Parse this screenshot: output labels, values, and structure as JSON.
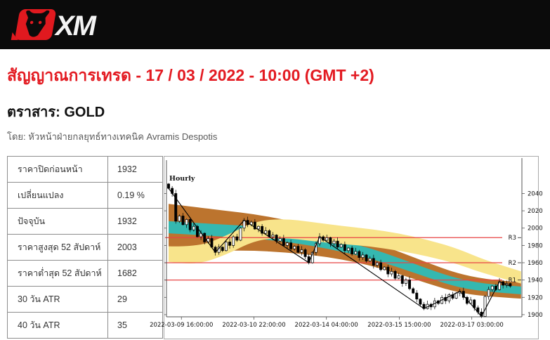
{
  "header": {
    "logo_text": "XM"
  },
  "article": {
    "title": "สัญญาณการเทรด - 17 / 03 / 2022 - 10:00 (GMT +2)",
    "instrument_label": "ตราสาร: GOLD",
    "byline": "โดย: หัวหน้าฝ่ายกลยุทธ์ทางเทคนิค Avramis Despotis"
  },
  "stats_table": {
    "rows": [
      {
        "label": "ราคาปิดก่อนหน้า",
        "value": "1932"
      },
      {
        "label": "เปลี่ยนแปลง",
        "value": "0.19 %"
      },
      {
        "label": "ปัจจุบัน",
        "value": "1932"
      },
      {
        "label": "ราคาสูงสุด 52 สัปดาห์",
        "value": "2003"
      },
      {
        "label": "ราคาต่ำสุด 52 สัปดาห์",
        "value": "1682"
      },
      {
        "label": "30 วัน ATR",
        "value": "29"
      },
      {
        "label": "40 วัน ATR",
        "value": "35"
      }
    ]
  },
  "chart_data": {
    "type": "candlestick",
    "timeframe_label": "Hourly",
    "y_range": [
      1897.5,
      2078.5
    ],
    "y_ticks": [
      1900,
      1920,
      1940,
      1960,
      1980,
      2000,
      2020,
      2040
    ],
    "x_ticks": [
      {
        "label": "2022-03-09 16:00:00",
        "pos": 0.042
      },
      {
        "label": "2022-03-10 22:00:00",
        "pos": 0.246
      },
      {
        "label": "2022-03-14 04:00:00",
        "pos": 0.45
      },
      {
        "label": "2022-03-15 15:00:00",
        "pos": 0.655
      },
      {
        "label": "2022-03-17 03:00:00",
        "pos": 0.859
      }
    ],
    "resistance_lines": [
      {
        "label": "R1",
        "value": 1940
      },
      {
        "label": "R2",
        "value": 1960
      },
      {
        "label": "R3",
        "value": 1989
      }
    ],
    "first_open": 2051,
    "closes": [
      2046,
      2040,
      2008,
      2014,
      2004,
      2010,
      1998,
      2002,
      1990,
      1994,
      1984,
      1988,
      1978,
      1972,
      1978,
      1974,
      1984,
      1980,
      1990,
      1986,
      2000,
      2009,
      2004,
      2007,
      1999,
      2002,
      1994,
      1997,
      1990,
      1992,
      1985,
      1988,
      1980,
      1983,
      1976,
      1979,
      1972,
      1975,
      1967,
      1960,
      1972,
      1982,
      1990,
      1986,
      1989,
      1982,
      1985,
      1978,
      1981,
      1974,
      1977,
      1970,
      1973,
      1966,
      1969,
      1962,
      1965,
      1957,
      1960,
      1952,
      1955,
      1947,
      1950,
      1942,
      1945,
      1936,
      1940,
      1930,
      1925,
      1918,
      1912,
      1907,
      1912,
      1909,
      1916,
      1913,
      1920,
      1916,
      1923,
      1919,
      1925,
      1927,
      1920,
      1913,
      1917,
      1908,
      1903,
      1898,
      1921,
      1929,
      1933,
      1929,
      1938,
      1934,
      1936,
      1933
    ],
    "zigzag": [
      [
        0,
        2046
      ],
      [
        13,
        1972
      ],
      [
        21,
        2009
      ],
      [
        39,
        1960
      ],
      [
        42,
        1990
      ],
      [
        71,
        1907
      ],
      [
        81,
        1927
      ],
      [
        87,
        1898
      ],
      [
        92,
        1938
      ],
      [
        95,
        1933
      ]
    ],
    "bands": {
      "sample_indices": [
        0,
        8,
        16,
        24,
        32,
        40,
        48,
        56,
        64,
        72,
        80,
        88,
        98
      ],
      "brown": {
        "color": "#bc742e",
        "center": [
          2001,
          1999,
          1997,
          1995,
          1991,
          1986,
          1979,
          1971,
          1960,
          1948,
          1937,
          1931,
          1928
        ],
        "halfwidth": [
          27,
          25,
          23,
          21,
          19,
          17,
          15,
          14,
          13,
          12,
          11,
          10,
          9.5
        ]
      },
      "teal": {
        "color": "#35b8b0",
        "center": [
          2001,
          1999,
          1997,
          1995,
          1991,
          1986,
          1979,
          1971,
          1960,
          1948,
          1937,
          1931,
          1928
        ],
        "halfwidth": [
          7,
          7,
          7,
          7,
          6.5,
          6.5,
          6,
          6,
          5.5,
          5,
          5,
          4.5,
          4.5
        ]
      },
      "yellow": {
        "color": "#f8e48b",
        "center": [
          1970,
          1968,
          1980,
          1997,
          2000,
          1996,
          1992,
          1989,
          1984,
          1977,
          1968,
          1955,
          1943
        ],
        "halfwidth": [
          9,
          10,
          11,
          11,
          11,
          11,
          10.5,
          10,
          10,
          9.5,
          9,
          8,
          7
        ]
      }
    },
    "colors": {
      "resistance": "#e84545",
      "bull_body": "#ffffff",
      "bear_body": "#000000",
      "outline": "#000000",
      "zigzag": "#000000",
      "axis": "#555555",
      "tick_text": "#111111"
    }
  },
  "page_colors": {
    "accent_red": "#e31b22",
    "header_bg": "#0b0b0b",
    "logo_red": "#e0191f"
  }
}
